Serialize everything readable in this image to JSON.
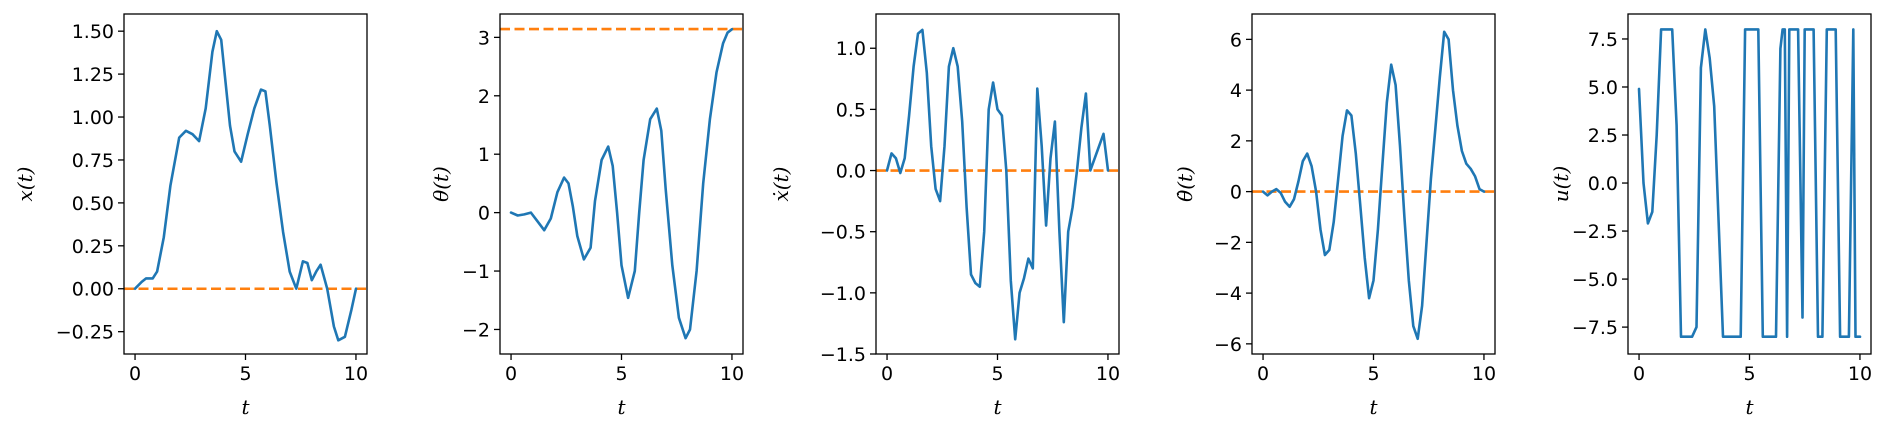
{
  "colors": {
    "series": "#1f77b4",
    "reference": "#ff7f0e",
    "axis": "#000000"
  },
  "chart_data": [
    {
      "type": "line",
      "xlabel": "t",
      "ylabel": "x(t)",
      "xlim": [
        -0.5,
        10.5
      ],
      "ylim": [
        -0.38,
        1.6
      ],
      "xticks": [
        "0",
        "5",
        "10"
      ],
      "yticks": [
        "−0.25",
        "0.00",
        "0.25",
        "0.50",
        "0.75",
        "1.00",
        "1.25",
        "1.50"
      ],
      "ytick_values": [
        -0.25,
        0,
        0.25,
        0.5,
        0.75,
        1.0,
        1.25,
        1.5
      ],
      "reference": 0,
      "series": [
        {
          "x": [
            0,
            0.3,
            0.5,
            0.8,
            1.0,
            1.3,
            1.6,
            2.0,
            2.3,
            2.6,
            2.9,
            3.2,
            3.5,
            3.7,
            3.9,
            4.1,
            4.3,
            4.5,
            4.8,
            5.1,
            5.4,
            5.7,
            5.9,
            6.1,
            6.4,
            6.7,
            7.0,
            7.3,
            7.6,
            7.8,
            8.0,
            8.2,
            8.4,
            8.7,
            9.0,
            9.2,
            9.5,
            9.8,
            10.0
          ],
          "y": [
            0,
            0.04,
            0.06,
            0.06,
            0.1,
            0.3,
            0.6,
            0.88,
            0.92,
            0.9,
            0.86,
            1.05,
            1.38,
            1.5,
            1.45,
            1.2,
            0.95,
            0.8,
            0.74,
            0.9,
            1.05,
            1.16,
            1.15,
            0.95,
            0.62,
            0.33,
            0.1,
            0.0,
            0.16,
            0.15,
            0.05,
            0.1,
            0.14,
            0.0,
            -0.22,
            -0.3,
            -0.28,
            -0.12,
            0.0
          ]
        }
      ]
    },
    {
      "type": "line",
      "xlabel": "t",
      "ylabel": "θ(t)",
      "xlim": [
        -0.5,
        10.5
      ],
      "ylim": [
        -2.42,
        3.4
      ],
      "xticks": [
        "0",
        "5",
        "10"
      ],
      "yticks": [
        "−2",
        "−1",
        "0",
        "1",
        "2",
        "3"
      ],
      "ytick_values": [
        -2,
        -1,
        0,
        1,
        2,
        3
      ],
      "reference": 3.14159,
      "series": [
        {
          "x": [
            0,
            0.3,
            0.6,
            0.9,
            1.2,
            1.5,
            1.8,
            2.1,
            2.4,
            2.6,
            2.8,
            3.0,
            3.3,
            3.6,
            3.8,
            4.1,
            4.4,
            4.6,
            4.8,
            5.0,
            5.3,
            5.6,
            5.8,
            6.0,
            6.3,
            6.6,
            6.8,
            7.0,
            7.3,
            7.6,
            7.9,
            8.1,
            8.4,
            8.7,
            9.0,
            9.3,
            9.6,
            9.8,
            10.0
          ],
          "y": [
            0,
            -0.05,
            -0.03,
            0.0,
            -0.15,
            -0.3,
            -0.1,
            0.35,
            0.6,
            0.5,
            0.1,
            -0.4,
            -0.8,
            -0.6,
            0.2,
            0.9,
            1.13,
            0.8,
            0.0,
            -0.9,
            -1.46,
            -1.0,
            0.0,
            0.9,
            1.6,
            1.78,
            1.4,
            0.4,
            -0.9,
            -1.8,
            -2.15,
            -2.0,
            -1.0,
            0.5,
            1.6,
            2.4,
            2.9,
            3.08,
            3.14
          ]
        }
      ]
    },
    {
      "type": "line",
      "xlabel": "t",
      "ylabel": "ẋ(t)",
      "xlim": [
        -0.5,
        10.5
      ],
      "ylim": [
        -1.5,
        1.28
      ],
      "xticks": [
        "0",
        "5",
        "10"
      ],
      "yticks": [
        "−1.5",
        "−1.0",
        "−0.5",
        "0.0",
        "0.5",
        "1.0"
      ],
      "ytick_values": [
        -1.5,
        -1.0,
        -0.5,
        0.0,
        0.5,
        1.0
      ],
      "reference": 0,
      "series": [
        {
          "x": [
            0,
            0.2,
            0.4,
            0.6,
            0.8,
            1.0,
            1.2,
            1.4,
            1.6,
            1.8,
            2.0,
            2.2,
            2.4,
            2.6,
            2.8,
            3.0,
            3.2,
            3.4,
            3.6,
            3.8,
            4.0,
            4.2,
            4.4,
            4.6,
            4.8,
            5.0,
            5.2,
            5.4,
            5.6,
            5.8,
            6.0,
            6.2,
            6.4,
            6.6,
            6.8,
            7.0,
            7.2,
            7.4,
            7.6,
            7.8,
            8.0,
            8.2,
            8.4,
            8.6,
            8.8,
            9.0,
            9.2,
            9.4,
            9.6,
            9.8,
            10.0
          ],
          "y": [
            0,
            0.14,
            0.1,
            -0.02,
            0.1,
            0.45,
            0.85,
            1.12,
            1.15,
            0.8,
            0.2,
            -0.15,
            -0.25,
            0.2,
            0.85,
            1.0,
            0.85,
            0.4,
            -0.3,
            -0.85,
            -0.92,
            -0.95,
            -0.5,
            0.5,
            0.72,
            0.5,
            0.45,
            0.0,
            -0.9,
            -1.38,
            -1.0,
            -0.88,
            -0.72,
            -0.8,
            0.67,
            0.2,
            -0.45,
            0.1,
            0.4,
            -0.5,
            -1.24,
            -0.5,
            -0.3,
            0.0,
            0.35,
            0.63,
            0.0,
            0.1,
            0.2,
            0.3,
            0.0
          ]
        }
      ]
    },
    {
      "type": "line",
      "xlabel": "t",
      "ylabel": "θ̇(t)",
      "xlim": [
        -0.5,
        10.5
      ],
      "ylim": [
        -6.4,
        7.0
      ],
      "xticks": [
        "0",
        "5",
        "10"
      ],
      "yticks": [
        "−6",
        "−4",
        "−2",
        "0",
        "2",
        "4",
        "6"
      ],
      "ytick_values": [
        -6,
        -4,
        -2,
        0,
        2,
        4,
        6
      ],
      "reference": 0,
      "series": [
        {
          "x": [
            0,
            0.2,
            0.4,
            0.6,
            0.8,
            1.0,
            1.2,
            1.4,
            1.6,
            1.8,
            2.0,
            2.2,
            2.4,
            2.6,
            2.8,
            3.0,
            3.2,
            3.4,
            3.6,
            3.8,
            4.0,
            4.2,
            4.4,
            4.6,
            4.8,
            5.0,
            5.2,
            5.4,
            5.6,
            5.8,
            6.0,
            6.2,
            6.4,
            6.6,
            6.8,
            7.0,
            7.2,
            7.4,
            7.6,
            7.8,
            8.0,
            8.2,
            8.4,
            8.6,
            8.8,
            9.0,
            9.2,
            9.4,
            9.6,
            9.8,
            10.0
          ],
          "y": [
            0,
            -0.15,
            0.0,
            0.1,
            -0.05,
            -0.4,
            -0.6,
            -0.3,
            0.4,
            1.2,
            1.5,
            1.0,
            0.0,
            -1.5,
            -2.5,
            -2.3,
            -1.2,
            0.5,
            2.2,
            3.2,
            3.0,
            1.5,
            -0.5,
            -2.6,
            -4.2,
            -3.5,
            -1.5,
            1.0,
            3.5,
            5.0,
            4.2,
            1.8,
            -1.0,
            -3.5,
            -5.3,
            -5.8,
            -4.5,
            -2.0,
            0.5,
            2.5,
            4.5,
            6.3,
            6.0,
            4.0,
            2.6,
            1.6,
            1.1,
            0.9,
            0.6,
            0.1,
            0.0
          ]
        }
      ]
    },
    {
      "type": "line",
      "xlabel": "t",
      "ylabel": "u(t)",
      "xlim": [
        -0.5,
        10.5
      ],
      "ylim": [
        -8.9,
        8.8
      ],
      "xticks": [
        "0",
        "5",
        "10"
      ],
      "yticks": [
        "−7.5",
        "−5.0",
        "−2.5",
        "0.0",
        "2.5",
        "5.0",
        "7.5"
      ],
      "ytick_values": [
        -7.5,
        -5.0,
        -2.5,
        0.0,
        2.5,
        5.0,
        7.5
      ],
      "reference": null,
      "series": [
        {
          "x": [
            0,
            0.2,
            0.4,
            0.6,
            0.8,
            1.0,
            1.2,
            1.5,
            1.7,
            1.9,
            2.2,
            2.4,
            2.6,
            2.8,
            3.0,
            3.2,
            3.4,
            3.6,
            3.8,
            4.0,
            4.2,
            4.4,
            4.6,
            4.8,
            5.0,
            5.2,
            5.4,
            5.6,
            6.0,
            6.2,
            6.4,
            6.5,
            6.6,
            6.7,
            6.8,
            6.9,
            7.0,
            7.2,
            7.4,
            7.5,
            7.6,
            7.7,
            7.9,
            8.1,
            8.3,
            8.5,
            8.6,
            8.7,
            8.9,
            9.1,
            9.3,
            9.5,
            9.7,
            9.8,
            10.0
          ],
          "y": [
            4.9,
            0.0,
            -2.1,
            -1.5,
            2.5,
            8.0,
            8.0,
            8.0,
            3.0,
            -8.0,
            -8.0,
            -8.0,
            -7.5,
            6.0,
            8.0,
            6.5,
            4.0,
            -2.0,
            -8.0,
            -8.0,
            -8.0,
            -8.0,
            -8.0,
            8.0,
            8.0,
            8.0,
            8.0,
            -8.0,
            -8.0,
            -8.0,
            7.0,
            8.0,
            8.0,
            -8.0,
            8.0,
            8.0,
            8.0,
            8.0,
            -7.0,
            8.0,
            8.0,
            8.0,
            8.0,
            -8.0,
            -8.0,
            8.0,
            8.0,
            8.0,
            8.0,
            -8.0,
            -8.0,
            -8.0,
            8.0,
            -8.0,
            -8.0
          ]
        }
      ]
    }
  ]
}
